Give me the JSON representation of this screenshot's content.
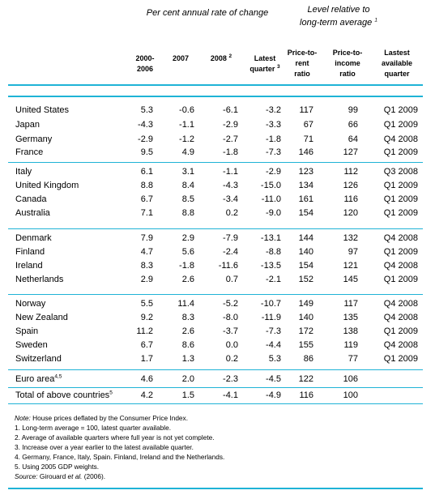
{
  "group_headers": {
    "change": "Per cent annual rate of change",
    "level_line1": "Level relative to",
    "level_line2": "long-term average",
    "level_sup": "1"
  },
  "columns": [
    {
      "lines": [
        "2000-",
        "2006"
      ],
      "sup": ""
    },
    {
      "lines": [
        "2007"
      ],
      "sup": ""
    },
    {
      "lines": [
        "2008"
      ],
      "sup": "2"
    },
    {
      "lines": [
        "Latest",
        "quarter"
      ],
      "sup": "3"
    },
    {
      "lines": [
        "Price-to-",
        "rent",
        "ratio"
      ],
      "sup": ""
    },
    {
      "lines": [
        "Price-to-",
        "income",
        "ratio"
      ],
      "sup": ""
    },
    {
      "lines": [
        "Lastest",
        "available",
        "quarter"
      ],
      "sup": ""
    }
  ],
  "rows": [
    {
      "country": "United States",
      "sup": "",
      "v": [
        "5.3",
        "-0.6",
        "-6.1",
        "-3.2",
        "117",
        "99",
        "Q1 2009"
      ]
    },
    {
      "country": "Japan",
      "sup": "",
      "v": [
        "-4.3",
        "-1.1",
        "-2.9",
        "-3.3",
        "67",
        "66",
        "Q1 2009"
      ]
    },
    {
      "country": "Germany",
      "sup": "",
      "v": [
        "-2.9",
        "-1.2",
        "-2.7",
        "-1.8",
        "71",
        "64",
        "Q4 2008"
      ]
    },
    {
      "country": "France",
      "sup": "",
      "v": [
        "9.5",
        "4.9",
        "-1.8",
        "-7.3",
        "146",
        "127",
        "Q1 2009"
      ]
    },
    {
      "country": "Italy",
      "sup": "",
      "v": [
        "6.1",
        "3.1",
        "-1.1",
        "-2.9",
        "123",
        "112",
        "Q3 2008"
      ]
    },
    {
      "country": "United Kingdom",
      "sup": "",
      "v": [
        "8.8",
        "8.4",
        "-4.3",
        "-15.0",
        "134",
        "126",
        "Q1 2009"
      ]
    },
    {
      "country": "Canada",
      "sup": "",
      "v": [
        "6.7",
        "8.5",
        "-3.4",
        "-11.0",
        "161",
        "116",
        "Q1 2009"
      ]
    },
    {
      "country": "Australia",
      "sup": "",
      "v": [
        "7.1",
        "8.8",
        "0.2",
        "-9.0",
        "154",
        "120",
        "Q1 2009"
      ]
    },
    {
      "country": "Denmark",
      "sup": "",
      "v": [
        "7.9",
        "2.9",
        "-7.9",
        "-13.1",
        "144",
        "132",
        "Q4 2008"
      ]
    },
    {
      "country": "Finland",
      "sup": "",
      "v": [
        "4.7",
        "5.6",
        "-2.4",
        "-8.8",
        "140",
        "97",
        "Q1 2009"
      ]
    },
    {
      "country": "Ireland",
      "sup": "",
      "v": [
        "8.3",
        "-1.8",
        "-11.6",
        "-13.5",
        "154",
        "121",
        "Q4 2008"
      ]
    },
    {
      "country": "Netherlands",
      "sup": "",
      "v": [
        "2.9",
        "2.6",
        "0.7",
        "-2.1",
        "152",
        "145",
        "Q1 2009"
      ]
    },
    {
      "country": "Norway",
      "sup": "",
      "v": [
        "5.5",
        "11.4",
        "-5.2",
        "-10.7",
        "149",
        "117",
        "Q4 2008"
      ]
    },
    {
      "country": "New Zealand",
      "sup": "",
      "v": [
        "9.2",
        "8.3",
        "-8.0",
        "-11.9",
        "140",
        "135",
        "Q4 2008"
      ]
    },
    {
      "country": "Spain",
      "sup": "",
      "v": [
        "11.2",
        "2.6",
        "-3.7",
        "-7.3",
        "172",
        "138",
        "Q1 2009"
      ]
    },
    {
      "country": "Sweden",
      "sup": "",
      "v": [
        "6.7",
        "8.6",
        "0.0",
        "-4.4",
        "155",
        "119",
        "Q4 2008"
      ]
    },
    {
      "country": "Switzerland",
      "sup": "",
      "v": [
        "1.7",
        "1.3",
        "0.2",
        "5.3",
        "86",
        "77",
        "Q1 2009"
      ]
    },
    {
      "country": "Euro area",
      "sup": "4,5",
      "v": [
        "4.6",
        "2.0",
        "-2.3",
        "-4.5",
        "122",
        "106",
        ""
      ]
    },
    {
      "country": "Total of above countries",
      "sup": "5",
      "v": [
        "4.2",
        "1.5",
        "-4.1",
        "-4.9",
        "116",
        "100",
        ""
      ]
    }
  ],
  "notes": {
    "note_label": "Note:",
    "note_text": " House prices deflated by the Consumer Price Index.",
    "items": [
      "1. Long-term average = 100, latest quarter available.",
      "2. Average of available quarters where full year is not yet complete.",
      "3. Increase over a year earlier to the latest available quarter.",
      "4. Germany, France, Italy, Spain. Finland, Ireland and the Netherlands.",
      "5. Using 2005 GDP weights."
    ],
    "source_label": "Source:",
    "source_pre": " Girouard ",
    "source_etal": "et al.",
    "source_post": " (2006)."
  }
}
